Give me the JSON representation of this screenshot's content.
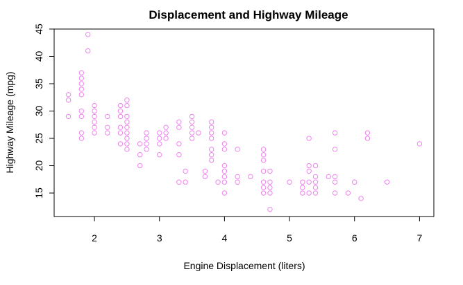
{
  "chart_data": {
    "type": "scatter",
    "title": "Displacement and Highway Mileage",
    "xlabel": "Engine Displacement (liters)",
    "ylabel": "Highway Mileage (mpg)",
    "xlim": [
      1.38,
      7.22
    ],
    "ylim": [
      10.7,
      45.0
    ],
    "xticks": [
      2,
      3,
      4,
      5,
      6,
      7
    ],
    "yticks": [
      15,
      20,
      25,
      30,
      35,
      40,
      45
    ],
    "grid": false,
    "legend": "none",
    "marker": "open-circle",
    "marker_color": "#ee82ee",
    "points": [
      [
        1.6,
        33
      ],
      [
        1.6,
        32
      ],
      [
        1.6,
        29
      ],
      [
        1.8,
        37
      ],
      [
        1.8,
        36
      ],
      [
        1.8,
        35
      ],
      [
        1.8,
        34
      ],
      [
        1.8,
        33
      ],
      [
        1.8,
        30
      ],
      [
        1.8,
        29
      ],
      [
        1.8,
        26
      ],
      [
        1.8,
        25
      ],
      [
        1.9,
        44
      ],
      [
        1.9,
        41
      ],
      [
        2.0,
        31
      ],
      [
        2.0,
        30
      ],
      [
        2.0,
        29
      ],
      [
        2.0,
        28
      ],
      [
        2.0,
        27
      ],
      [
        2.0,
        26
      ],
      [
        2.2,
        29
      ],
      [
        2.2,
        27
      ],
      [
        2.2,
        26
      ],
      [
        2.4,
        31
      ],
      [
        2.4,
        30
      ],
      [
        2.4,
        29
      ],
      [
        2.4,
        27
      ],
      [
        2.4,
        26
      ],
      [
        2.4,
        24
      ],
      [
        2.5,
        32
      ],
      [
        2.5,
        31
      ],
      [
        2.5,
        29
      ],
      [
        2.5,
        28
      ],
      [
        2.5,
        27
      ],
      [
        2.5,
        26
      ],
      [
        2.5,
        25
      ],
      [
        2.5,
        24
      ],
      [
        2.5,
        23
      ],
      [
        2.7,
        24
      ],
      [
        2.7,
        22
      ],
      [
        2.7,
        20
      ],
      [
        2.8,
        26
      ],
      [
        2.8,
        25
      ],
      [
        2.8,
        24
      ],
      [
        2.8,
        23
      ],
      [
        3.0,
        26
      ],
      [
        3.0,
        25
      ],
      [
        3.0,
        24
      ],
      [
        3.0,
        22
      ],
      [
        3.1,
        27
      ],
      [
        3.1,
        26
      ],
      [
        3.1,
        25
      ],
      [
        3.3,
        28
      ],
      [
        3.3,
        27
      ],
      [
        3.3,
        24
      ],
      [
        3.3,
        22
      ],
      [
        3.3,
        17
      ],
      [
        3.4,
        19
      ],
      [
        3.4,
        17
      ],
      [
        3.5,
        29
      ],
      [
        3.5,
        28
      ],
      [
        3.5,
        27
      ],
      [
        3.5,
        26
      ],
      [
        3.5,
        25
      ],
      [
        3.6,
        26
      ],
      [
        3.7,
        19
      ],
      [
        3.7,
        18
      ],
      [
        3.8,
        28
      ],
      [
        3.8,
        27
      ],
      [
        3.8,
        26
      ],
      [
        3.8,
        25
      ],
      [
        3.8,
        23
      ],
      [
        3.8,
        22
      ],
      [
        3.8,
        21
      ],
      [
        3.9,
        17
      ],
      [
        4.0,
        26
      ],
      [
        4.0,
        24
      ],
      [
        4.0,
        23
      ],
      [
        4.0,
        20
      ],
      [
        4.0,
        19
      ],
      [
        4.0,
        18
      ],
      [
        4.0,
        17
      ],
      [
        4.0,
        15
      ],
      [
        4.2,
        23
      ],
      [
        4.2,
        18
      ],
      [
        4.2,
        17
      ],
      [
        4.4,
        18
      ],
      [
        4.6,
        23
      ],
      [
        4.6,
        22
      ],
      [
        4.6,
        21
      ],
      [
        4.6,
        19
      ],
      [
        4.6,
        17
      ],
      [
        4.6,
        16
      ],
      [
        4.6,
        15
      ],
      [
        4.7,
        19
      ],
      [
        4.7,
        17
      ],
      [
        4.7,
        16
      ],
      [
        4.7,
        15
      ],
      [
        4.7,
        12
      ],
      [
        5.0,
        17
      ],
      [
        5.2,
        17
      ],
      [
        5.2,
        16
      ],
      [
        5.2,
        15
      ],
      [
        5.3,
        25
      ],
      [
        5.3,
        20
      ],
      [
        5.3,
        19
      ],
      [
        5.3,
        17
      ],
      [
        5.3,
        15
      ],
      [
        5.4,
        20
      ],
      [
        5.4,
        18
      ],
      [
        5.4,
        17
      ],
      [
        5.4,
        16
      ],
      [
        5.4,
        15
      ],
      [
        5.6,
        18
      ],
      [
        5.7,
        26
      ],
      [
        5.7,
        23
      ],
      [
        5.7,
        18
      ],
      [
        5.7,
        17
      ],
      [
        5.7,
        15
      ],
      [
        5.9,
        15
      ],
      [
        6.0,
        17
      ],
      [
        6.1,
        14
      ],
      [
        6.2,
        26
      ],
      [
        6.2,
        25
      ],
      [
        6.5,
        17
      ],
      [
        7.0,
        24
      ]
    ]
  }
}
